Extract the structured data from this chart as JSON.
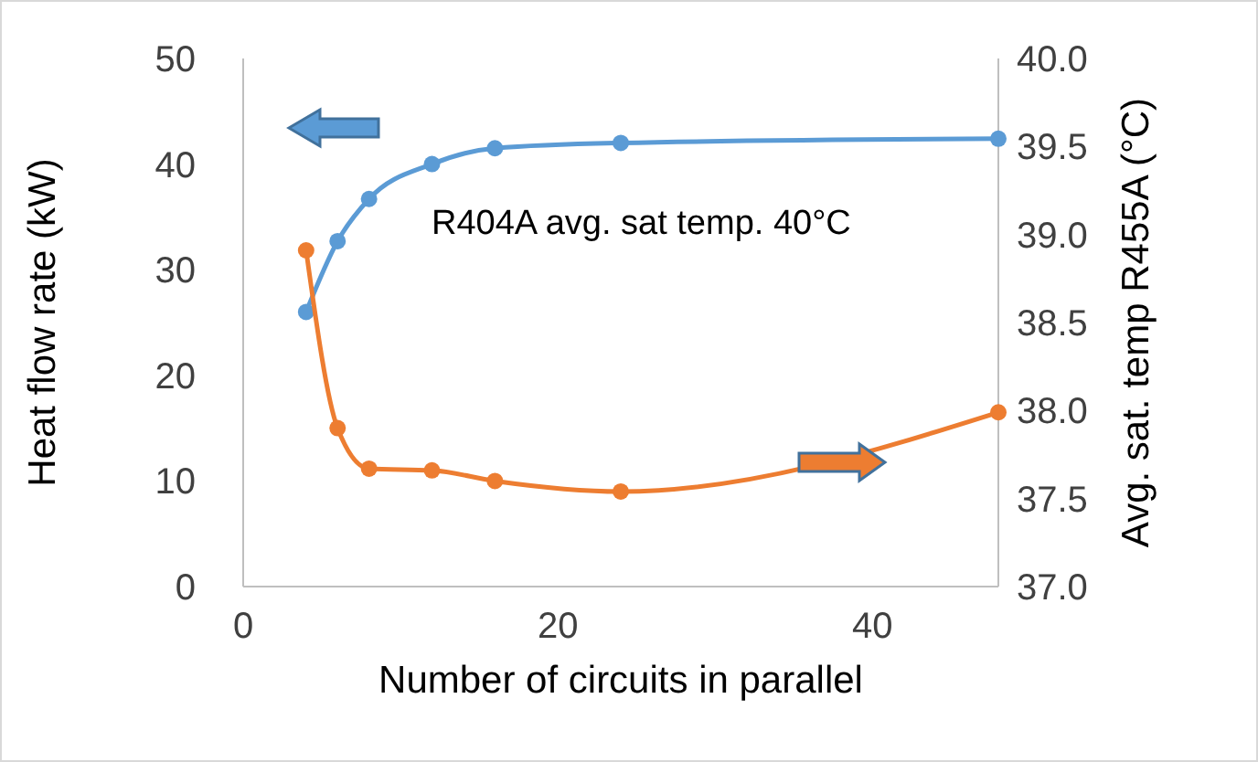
{
  "chart_data": {
    "type": "line",
    "xlabel": "Number of circuits in parallel",
    "ylabel": "Heat flow rate (kW)",
    "y2label": "Avg. sat. temp R455A (°C)",
    "x": [
      4,
      6,
      8,
      12,
      16,
      24,
      48
    ],
    "series": [
      {
        "color": "#5b9bd5",
        "values": [
          26.0,
          32.7,
          36.7,
          40.0,
          41.5,
          42.0,
          42.4
        ]
      },
      {
        "color": "#ed7d31",
        "axis": "y2",
        "values": [
          38.91,
          37.9,
          37.67,
          37.66,
          37.6,
          37.54,
          37.99
        ]
      }
    ],
    "xlim": [
      0,
      48
    ],
    "xticks": [
      0,
      20,
      40
    ],
    "ylim": [
      0,
      50
    ],
    "yticks": [
      0,
      10,
      20,
      30,
      40,
      50
    ],
    "y2lim": [
      37,
      40
    ],
    "y2ticks": [
      {
        "value": 37,
        "label": "37.0"
      },
      {
        "value": 37.5,
        "label": "37.5"
      },
      {
        "value": 38,
        "label": "38.0"
      },
      {
        "value": 38.5,
        "label": "38.5"
      },
      {
        "value": 39,
        "label": "39.0"
      },
      {
        "value": 39.5,
        "label": "39.5"
      },
      {
        "value": 40,
        "label": "40.0"
      }
    ],
    "annotations": [
      "R404A avg. sat temp. 40°C"
    ],
    "grid": false,
    "marker": "circle",
    "line_style": "solid"
  }
}
